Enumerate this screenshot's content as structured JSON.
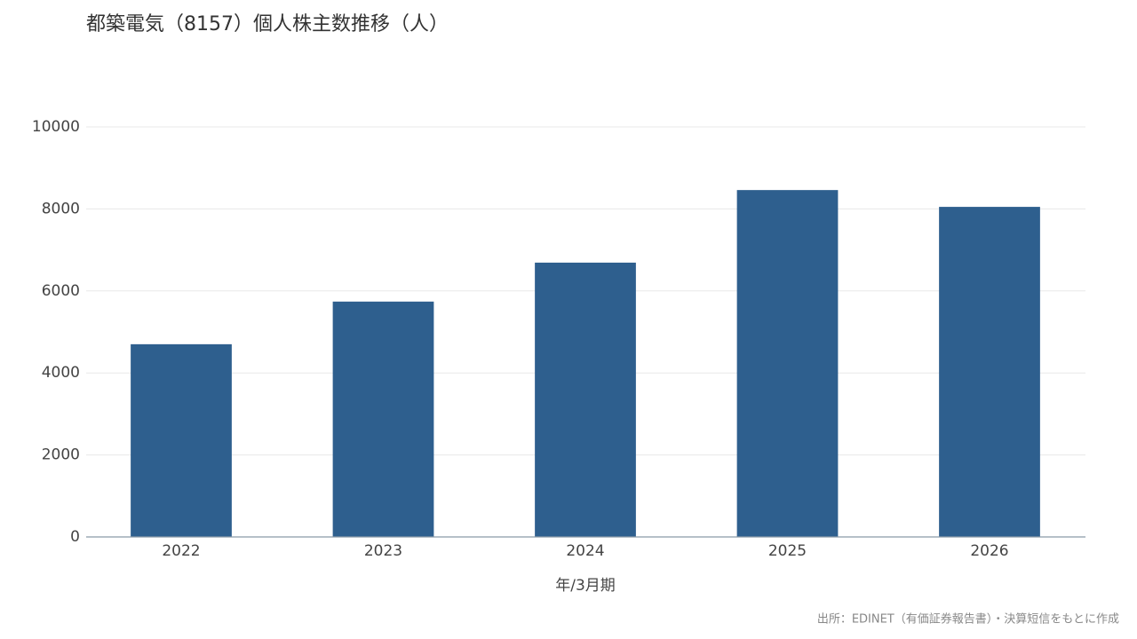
{
  "chart_data": {
    "type": "bar",
    "title": "都築電気（8157）個人株主数推移（人）",
    "x_label": "年/3月期",
    "source": "出所：EDINET（有価証券報告書）・決算短信をもとに作成",
    "categories": [
      "2022",
      "2023",
      "2024",
      "2025",
      "2026"
    ],
    "values": [
      4700,
      5740,
      6690,
      8460,
      8050
    ],
    "color": "#2e5f8e",
    "ylim": [
      0,
      10000
    ],
    "yticks": [
      0,
      2000,
      4000,
      6000,
      8000,
      10000
    ],
    "grid": true
  }
}
